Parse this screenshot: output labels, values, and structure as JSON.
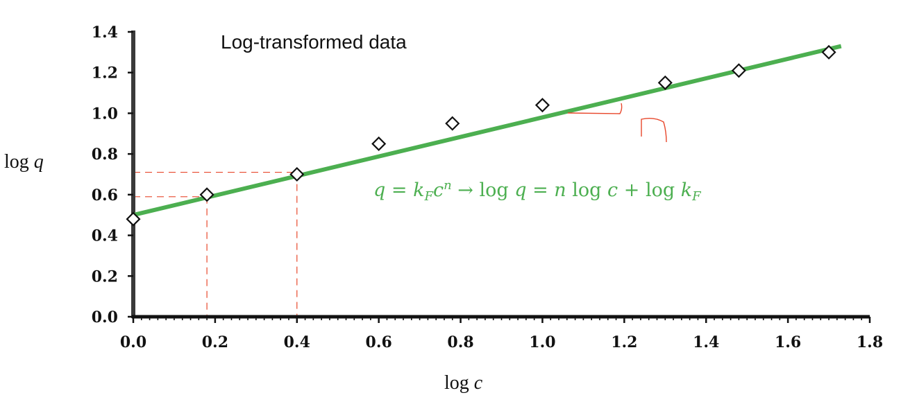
{
  "chart_data": {
    "type": "scatter",
    "title": "Log-transformed data",
    "xlabel": "log c",
    "ylabel": "log q",
    "xlim": [
      0.0,
      1.8
    ],
    "ylim": [
      0.0,
      1.4
    ],
    "x_ticks": [
      "0.0",
      "0.2",
      "0.4",
      "0.6",
      "0.8",
      "1.0",
      "1.2",
      "1.4",
      "1.6",
      "1.8"
    ],
    "y_ticks": [
      "0.0",
      "0.2",
      "0.4",
      "0.6",
      "0.8",
      "1.0",
      "1.2",
      "1.4"
    ],
    "series": [
      {
        "marker": "open-diamond",
        "x": [
          0.0,
          0.18,
          0.4,
          0.6,
          0.78,
          1.0,
          1.3,
          1.48,
          1.7
        ],
        "y": [
          0.48,
          0.6,
          0.7,
          0.85,
          0.95,
          1.04,
          1.15,
          1.21,
          1.3
        ]
      }
    ],
    "fit_line": {
      "x": [
        0.0,
        1.73
      ],
      "y": [
        0.5,
        1.33
      ],
      "color": "#4caf50"
    },
    "equation": "q = kFcⁿ → log q = n log c + log kF",
    "equation_color": "#4caf50",
    "annotation": {
      "text": "n",
      "color": "#e8472b"
    },
    "guides": [
      {
        "x": 0.18,
        "y": 0.59
      },
      {
        "x": 0.4,
        "y": 0.71
      }
    ],
    "guide_color": "#e8472b",
    "grid": false
  }
}
